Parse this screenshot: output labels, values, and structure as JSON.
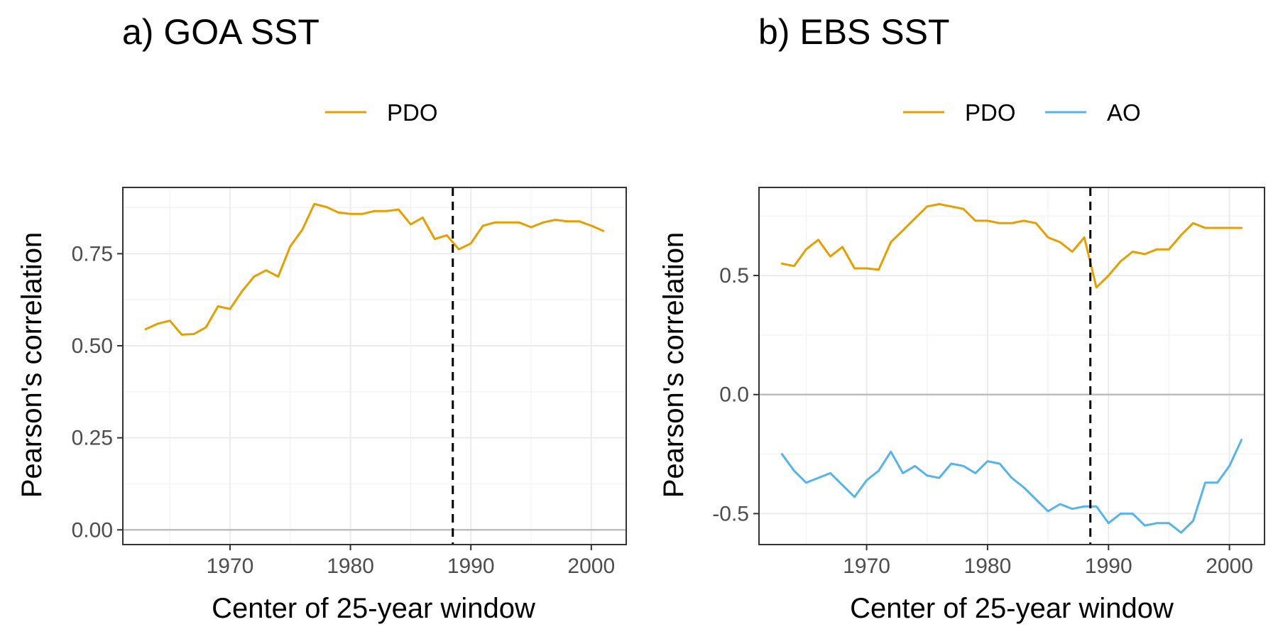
{
  "chart_data": [
    {
      "type": "line",
      "title": "a) GOA SST",
      "xlabel": "Center of 25-year window",
      "ylabel": "Pearson's correlation",
      "xlim": [
        1961.1,
        2002.9
      ],
      "ylim": [
        -0.04,
        0.93
      ],
      "x_ticks": [
        1970,
        1980,
        1990,
        2000
      ],
      "y_ticks": [
        0.0,
        0.25,
        0.5,
        0.75
      ],
      "y_tick_labels": [
        "0.00",
        "0.25",
        "0.50",
        "0.75"
      ],
      "grid": true,
      "legend_position": "top",
      "reference_hline": 0,
      "reference_vline": 1988.5,
      "x": [
        1963,
        1964,
        1965,
        1966,
        1967,
        1968,
        1969,
        1970,
        1971,
        1972,
        1973,
        1974,
        1975,
        1976,
        1977,
        1978,
        1979,
        1980,
        1981,
        1982,
        1983,
        1984,
        1985,
        1986,
        1987,
        1988,
        1989,
        1990,
        1991,
        1992,
        1993,
        1994,
        1995,
        1996,
        1997,
        1998,
        1999,
        2000,
        2001
      ],
      "series": [
        {
          "name": "PDO",
          "color": "#E69F00",
          "values": [
            0.545,
            0.56,
            0.568,
            0.53,
            0.532,
            0.55,
            0.607,
            0.6,
            0.648,
            0.688,
            0.705,
            0.688,
            0.77,
            0.815,
            0.885,
            0.877,
            0.862,
            0.858,
            0.858,
            0.866,
            0.866,
            0.87,
            0.83,
            0.848,
            0.79,
            0.8,
            0.762,
            0.778,
            0.826,
            0.835,
            0.835,
            0.835,
            0.822,
            0.835,
            0.842,
            0.838,
            0.838,
            0.826,
            0.812
          ]
        }
      ]
    },
    {
      "type": "line",
      "title": "b) EBS SST",
      "xlabel": "Center of 25-year window",
      "ylabel": "Pearson's correlation",
      "xlim": [
        1961.1,
        2002.9
      ],
      "ylim": [
        -0.63,
        0.87
      ],
      "x_ticks": [
        1970,
        1980,
        1990,
        2000
      ],
      "y_ticks": [
        -0.5,
        0.0,
        0.5
      ],
      "y_tick_labels": [
        "-0.5",
        "0.0",
        "0.5"
      ],
      "grid": true,
      "legend_position": "top",
      "reference_hline": 0,
      "reference_vline": 1988.5,
      "x": [
        1963,
        1964,
        1965,
        1966,
        1967,
        1968,
        1969,
        1970,
        1971,
        1972,
        1973,
        1974,
        1975,
        1976,
        1977,
        1978,
        1979,
        1980,
        1981,
        1982,
        1983,
        1984,
        1985,
        1986,
        1987,
        1988,
        1989,
        1990,
        1991,
        1992,
        1993,
        1994,
        1995,
        1996,
        1997,
        1998,
        1999,
        2000,
        2001
      ],
      "series": [
        {
          "name": "PDO",
          "color": "#E69F00",
          "values": [
            0.55,
            0.54,
            0.61,
            0.65,
            0.58,
            0.62,
            0.53,
            0.53,
            0.525,
            0.64,
            0.69,
            0.74,
            0.79,
            0.8,
            0.79,
            0.78,
            0.73,
            0.73,
            0.72,
            0.72,
            0.73,
            0.72,
            0.66,
            0.64,
            0.6,
            0.66,
            0.45,
            0.5,
            0.56,
            0.6,
            0.59,
            0.61,
            0.61,
            0.67,
            0.72,
            0.7,
            0.7,
            0.7,
            0.7
          ]
        },
        {
          "name": "AO",
          "color": "#56B4E9",
          "values": [
            -0.25,
            -0.32,
            -0.37,
            -0.35,
            -0.33,
            -0.38,
            -0.43,
            -0.36,
            -0.32,
            -0.24,
            -0.33,
            -0.3,
            -0.34,
            -0.35,
            -0.29,
            -0.3,
            -0.33,
            -0.28,
            -0.29,
            -0.35,
            -0.39,
            -0.44,
            -0.49,
            -0.46,
            -0.48,
            -0.47,
            -0.47,
            -0.54,
            -0.5,
            -0.5,
            -0.55,
            -0.54,
            -0.54,
            -0.58,
            -0.53,
            -0.37,
            -0.37,
            -0.3,
            -0.19
          ]
        }
      ]
    }
  ]
}
